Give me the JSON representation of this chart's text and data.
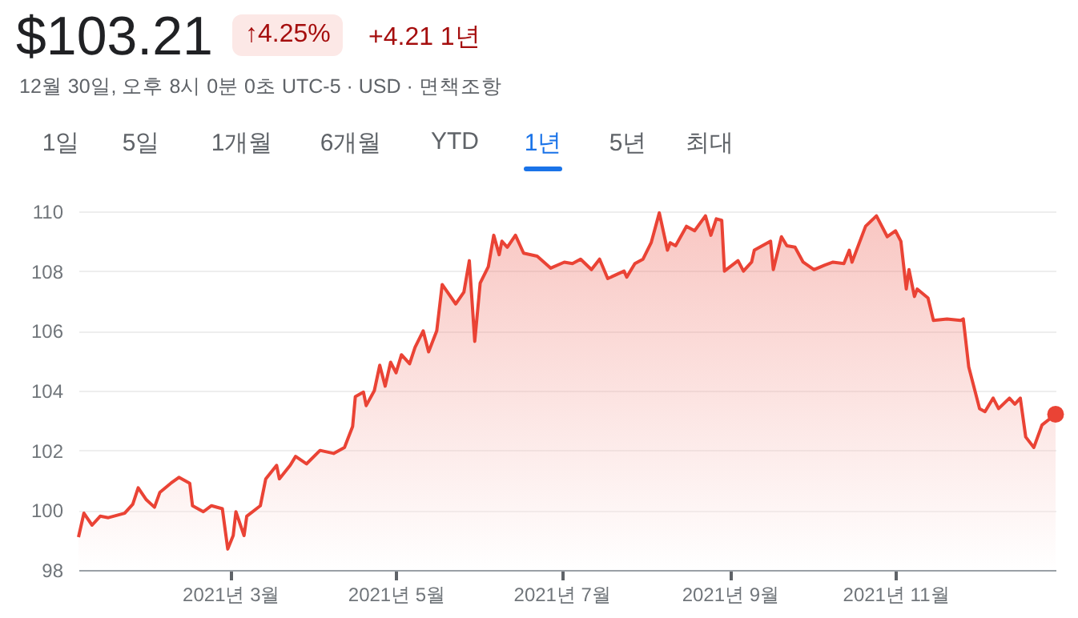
{
  "chart_data": {
    "type": "area",
    "title": "$103.21",
    "subtitle": "12월 30일, 오후 8시 0분 0초 UTC-5 · USD · 면책조항",
    "annotations": [
      "↑4.25%",
      "+4.21 1년",
      "1일",
      "5일",
      "1개월",
      "6개월",
      "YTD",
      "1년",
      "5년",
      "최대"
    ],
    "xlim": [
      "2021-01-04",
      "2021-12-30"
    ],
    "xticks": [
      {
        "value": "2021-03-01",
        "label": "2021년 3월"
      },
      {
        "value": "2021-05-01",
        "label": "2021년 5월"
      },
      {
        "value": "2021-07-01",
        "label": "2021년 7월"
      },
      {
        "value": "2021-09-01",
        "label": "2021년 9월"
      },
      {
        "value": "2021-11-01",
        "label": "2021년 11월"
      }
    ],
    "ylim": [
      98,
      110
    ],
    "yticks": [
      98,
      100,
      102,
      104,
      106,
      108,
      110
    ],
    "grid": "y",
    "series": [
      {
        "color": "#ea4335",
        "x": [
          "2021-01-04",
          "2021-01-06",
          "2021-01-09",
          "2021-01-12",
          "2021-01-15",
          "2021-01-21",
          "2021-01-24",
          "2021-01-26",
          "2021-01-29",
          "2021-02-01",
          "2021-02-03",
          "2021-02-07",
          "2021-02-10",
          "2021-02-14",
          "2021-02-15",
          "2021-02-19",
          "2021-02-22",
          "2021-02-26",
          "2021-02-28",
          "2021-03-02",
          "2021-03-03",
          "2021-03-06",
          "2021-03-07",
          "2021-03-12",
          "2021-03-14",
          "2021-03-18",
          "2021-03-19",
          "2021-03-23",
          "2021-03-25",
          "2021-03-29",
          "2021-04-03",
          "2021-04-08",
          "2021-04-12",
          "2021-04-15",
          "2021-04-16",
          "2021-04-19",
          "2021-04-20",
          "2021-04-23",
          "2021-04-25",
          "2021-04-27",
          "2021-04-29",
          "2021-05-01",
          "2021-05-03",
          "2021-05-06",
          "2021-05-08",
          "2021-05-11",
          "2021-05-13",
          "2021-05-16",
          "2021-05-18",
          "2021-05-23",
          "2021-05-26",
          "2021-05-28",
          "2021-05-30",
          "2021-06-01",
          "2021-06-04",
          "2021-06-06",
          "2021-06-08",
          "2021-06-09",
          "2021-06-11",
          "2021-06-14",
          "2021-06-17",
          "2021-06-22",
          "2021-06-27",
          "2021-07-02",
          "2021-07-05",
          "2021-07-08",
          "2021-07-12",
          "2021-07-15",
          "2021-07-18",
          "2021-07-24",
          "2021-07-25",
          "2021-07-28",
          "2021-07-31",
          "2021-08-03",
          "2021-08-06",
          "2021-08-09",
          "2021-08-10",
          "2021-08-12",
          "2021-08-16",
          "2021-08-19",
          "2021-08-23",
          "2021-08-25",
          "2021-08-27",
          "2021-08-29",
          "2021-08-30",
          "2021-09-04",
          "2021-09-06",
          "2021-09-09",
          "2021-09-10",
          "2021-09-16",
          "2021-09-17",
          "2021-09-20",
          "2021-09-22",
          "2021-09-25",
          "2021-09-28",
          "2021-10-02",
          "2021-10-06",
          "2021-10-09",
          "2021-10-13",
          "2021-10-15",
          "2021-10-16",
          "2021-10-21",
          "2021-10-25",
          "2021-10-29",
          "2021-11-01",
          "2021-11-03",
          "2021-11-05",
          "2021-11-06",
          "2021-11-08",
          "2021-11-09",
          "2021-11-13",
          "2021-11-15",
          "2021-11-20",
          "2021-11-25",
          "2021-11-26",
          "2021-11-28",
          "2021-12-02",
          "2021-12-04",
          "2021-12-07",
          "2021-12-09",
          "2021-12-13",
          "2021-12-15",
          "2021-12-17",
          "2021-12-19",
          "2021-12-22",
          "2021-12-25",
          "2021-12-30"
        ],
        "values": [
          99.1,
          99.9,
          99.5,
          99.8,
          99.75,
          99.9,
          100.2,
          100.75,
          100.35,
          100.1,
          100.6,
          100.9,
          101.1,
          100.9,
          100.15,
          99.95,
          100.15,
          100.05,
          98.7,
          99.15,
          99.95,
          99.15,
          99.8,
          100.15,
          101.05,
          101.5,
          101.05,
          101.5,
          101.8,
          101.55,
          102.0,
          101.9,
          102.1,
          102.8,
          103.8,
          103.95,
          103.5,
          104.0,
          104.85,
          104.15,
          104.95,
          104.6,
          105.2,
          104.9,
          105.45,
          106.0,
          105.3,
          106.0,
          107.55,
          106.9,
          107.3,
          108.35,
          105.65,
          107.6,
          108.15,
          109.2,
          108.55,
          109.0,
          108.8,
          109.2,
          108.6,
          108.5,
          108.1,
          108.3,
          108.25,
          108.4,
          108.05,
          108.4,
          107.75,
          108.0,
          107.8,
          108.25,
          108.4,
          108.95,
          109.95,
          108.7,
          108.95,
          108.85,
          109.5,
          109.35,
          109.85,
          109.2,
          109.75,
          109.7,
          108.0,
          108.35,
          108.0,
          108.3,
          108.7,
          109.0,
          108.05,
          109.15,
          108.85,
          108.8,
          108.3,
          108.05,
          108.2,
          108.3,
          108.25,
          108.7,
          108.3,
          109.5,
          109.85,
          109.15,
          109.35,
          109.0,
          107.4,
          108.05,
          107.15,
          107.4,
          107.1,
          106.35,
          106.4,
          106.35,
          106.4,
          104.8,
          103.4,
          103.3,
          103.75,
          103.4,
          103.75,
          103.55,
          103.75,
          102.45,
          102.1,
          102.85,
          103.21
        ]
      },
      {
        "type": "scatter",
        "color": "#ea4335",
        "marker": "circle",
        "x": [
          "2021-12-30"
        ],
        "values": [
          103.21
        ]
      }
    ]
  }
}
